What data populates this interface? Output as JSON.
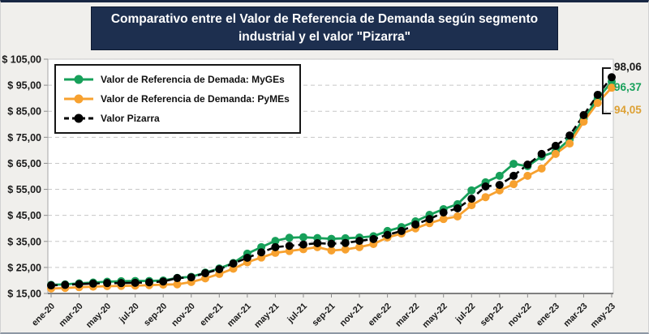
{
  "title": "Comparativo entre el Valor de Referencia de Demanda según segmento industrial y el valor \"Pizarra\"",
  "title_bg": "#1d2f4f",
  "legend": {
    "items": [
      {
        "label": "Valor de Referencia de Demada: MyGEs",
        "color": "#17a05a",
        "dashed": false
      },
      {
        "label": "Valor de Referencia de Demanda: PyMEs",
        "color": "#f7a12f",
        "dashed": false
      },
      {
        "label": "Valor Pizarra",
        "color": "#000000",
        "dashed": true
      }
    ]
  },
  "end_labels": [
    {
      "text": "98,06",
      "color": "#1a1a1a"
    },
    {
      "text": "96,37",
      "color": "#17a05a"
    },
    {
      "text": "94,05",
      "color": "#dda135"
    }
  ],
  "chart_data": {
    "type": "line",
    "title": "Comparativo entre el Valor de Referencia de Demanda según segmento industrial y el valor \"Pizarra\"",
    "x": [
      "ene-20",
      "feb-20",
      "mar-20",
      "abr-20",
      "may-20",
      "jun-20",
      "jul-20",
      "ago-20",
      "sep-20",
      "oct-20",
      "nov-20",
      "dic-20",
      "ene-21",
      "feb-21",
      "mar-21",
      "abr-21",
      "may-21",
      "jun-21",
      "jul-21",
      "ago-21",
      "sep-21",
      "oct-21",
      "nov-21",
      "dic-21",
      "ene-22",
      "feb-22",
      "mar-22",
      "abr-22",
      "may-22",
      "jun-22",
      "jul-22",
      "ago-22",
      "sep-22",
      "oct-22",
      "nov-22",
      "dic-22",
      "ene-23",
      "feb-23",
      "mar-23",
      "abr-23",
      "may-23"
    ],
    "x_tick_every": 2,
    "ylim": [
      15,
      105
    ],
    "y_tick_step": 10,
    "y_tick_labels": [
      "$ 15,00",
      "$ 25,00",
      "$ 35,00",
      "$ 45,00",
      "$ 55,00",
      "$ 65,00",
      "$ 75,00",
      "$ 85,00",
      "$ 95,00",
      "$ 105,00"
    ],
    "grid": "horizontal-dashed",
    "legend_position": "top-left",
    "series": [
      {
        "name": "Valor de Referencia de Demada: MyGEs",
        "color": "#17a05a",
        "dashed": false,
        "marker": "circle",
        "values": [
          18.3,
          18.5,
          18.9,
          19.2,
          19.5,
          19.7,
          19.8,
          19.8,
          20.0,
          21.0,
          21.4,
          23.0,
          24.6,
          26.7,
          30.3,
          32.8,
          35.2,
          36.4,
          36.6,
          36.3,
          36.0,
          36.2,
          36.5,
          37.0,
          39.0,
          40.5,
          42.7,
          45.2,
          47.4,
          49.3,
          54.6,
          57.7,
          60.2,
          64.8,
          63.9,
          67.6,
          69.5,
          74.2,
          82.0,
          89.8,
          96.37
        ]
      },
      {
        "name": "Valor de Referencia de Demanda: PyMEs",
        "color": "#f7a12f",
        "dashed": false,
        "marker": "circle",
        "values": [
          16.9,
          17.1,
          17.4,
          17.6,
          17.8,
          17.9,
          18.0,
          18.2,
          18.4,
          18.5,
          19.4,
          20.8,
          22.5,
          24.5,
          27.0,
          28.8,
          30.6,
          31.3,
          32.0,
          32.8,
          31.5,
          31.9,
          32.8,
          34.0,
          36.5,
          38.0,
          40.0,
          42.0,
          43.6,
          44.6,
          48.9,
          52.0,
          54.6,
          57.0,
          60.2,
          63.0,
          68.6,
          72.6,
          81.0,
          88.2,
          94.05
        ]
      },
      {
        "name": "Valor Pizarra",
        "color": "#000000",
        "dashed": true,
        "marker": "circle",
        "values": [
          18.1,
          18.3,
          18.6,
          18.8,
          19.0,
          19.0,
          19.1,
          19.3,
          19.6,
          20.9,
          21.2,
          22.8,
          24.3,
          26.5,
          28.7,
          30.8,
          32.8,
          33.3,
          33.8,
          34.3,
          34.1,
          34.4,
          35.2,
          35.9,
          37.5,
          39.0,
          41.5,
          43.6,
          46.1,
          47.7,
          51.4,
          56.1,
          56.7,
          60.2,
          64.5,
          68.6,
          71.7,
          75.7,
          83.5,
          91.3,
          98.06
        ]
      }
    ],
    "final_values": {
      "Valor Pizarra": "98,06",
      "MyGEs": "96,37",
      "PyMEs": "94,05"
    }
  }
}
